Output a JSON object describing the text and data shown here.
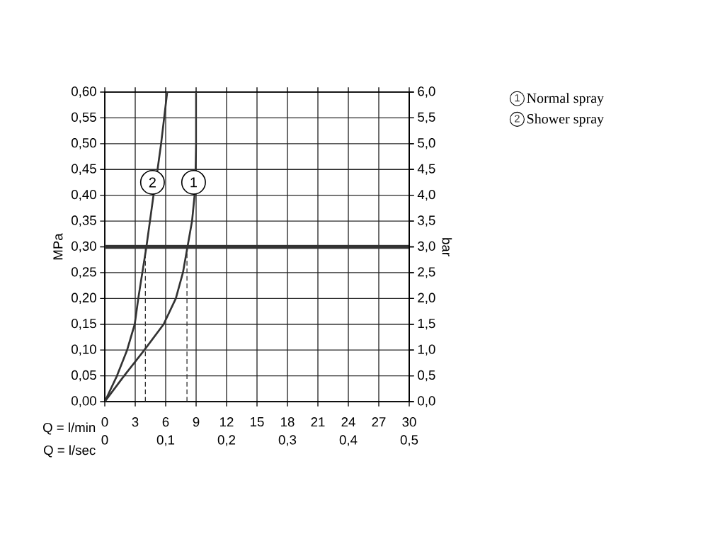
{
  "chart_data": {
    "type": "line",
    "xlabel": "Q = l/min",
    "x2label": "Q = l/sec",
    "ylabel": "MPa",
    "y2label": "bar",
    "xlim": [
      0,
      30
    ],
    "xticks": [
      0,
      3,
      6,
      9,
      12,
      15,
      18,
      21,
      24,
      27,
      30
    ],
    "x2lim": [
      0,
      0.5
    ],
    "x2ticks": [
      0,
      {
        "value": 0.1,
        "label": "0,1"
      },
      {
        "value": 0.2,
        "label": "0,2"
      },
      {
        "value": 0.3,
        "label": "0,3"
      },
      {
        "value": 0.4,
        "label": "0,4"
      },
      {
        "value": 0.5,
        "label": "0,5"
      }
    ],
    "ylim": [
      0,
      0.6
    ],
    "yticks": [
      {
        "value": 0,
        "label": "0,00"
      },
      {
        "value": 0.05,
        "label": "0,05"
      },
      {
        "value": 0.1,
        "label": "0,10"
      },
      {
        "value": 0.15,
        "label": "0,15"
      },
      {
        "value": 0.2,
        "label": "0,20"
      },
      {
        "value": 0.25,
        "label": "0,25"
      },
      {
        "value": 0.3,
        "label": "0,30"
      },
      {
        "value": 0.35,
        "label": "0,35"
      },
      {
        "value": 0.4,
        "label": "0,40"
      },
      {
        "value": 0.45,
        "label": "0,45"
      },
      {
        "value": 0.5,
        "label": "0,50"
      },
      {
        "value": 0.55,
        "label": "0,55"
      },
      {
        "value": 0.6,
        "label": "0,60"
      }
    ],
    "y2lim": [
      0,
      6
    ],
    "y2ticks": [
      {
        "value": 0,
        "label": "0,0"
      },
      {
        "value": 0.5,
        "label": "0,5"
      },
      {
        "value": 1,
        "label": "1,0"
      },
      {
        "value": 1.5,
        "label": "1,5"
      },
      {
        "value": 2,
        "label": "2,0"
      },
      {
        "value": 2.5,
        "label": "2,5"
      },
      {
        "value": 3,
        "label": "3,0"
      },
      {
        "value": 3.5,
        "label": "3,5"
      },
      {
        "value": 4,
        "label": "4,0"
      },
      {
        "value": 4.5,
        "label": "4,5"
      },
      {
        "value": 5,
        "label": "5,0"
      },
      {
        "value": 5.5,
        "label": "5,5"
      },
      {
        "value": 6,
        "label": "6,0"
      }
    ],
    "grid": true,
    "legend": "top right",
    "marker": "none",
    "line_style": "solid",
    "series": [
      {
        "name": "Normal spray",
        "color": "#333333",
        "x": [
          0,
          1.9,
          3.9,
          5.8,
          7.0,
          7.7,
          8.15,
          8.6,
          8.85,
          8.95,
          9.0,
          9.0
        ],
        "values": [
          0,
          0.05,
          0.1,
          0.15,
          0.2,
          0.25,
          0.3,
          0.35,
          0.4,
          0.45,
          0.5,
          0.6
        ]
      },
      {
        "name": "Shower spray",
        "color": "#333333",
        "x": [
          0,
          1.2,
          2.2,
          2.95,
          3.3,
          3.7,
          4.1,
          4.45,
          4.8,
          5.2,
          5.55,
          5.85,
          6.15
        ],
        "values": [
          0,
          0.05,
          0.1,
          0.15,
          0.2,
          0.25,
          0.3,
          0.35,
          0.4,
          0.45,
          0.5,
          0.55,
          0.6
        ]
      }
    ],
    "ref_lines": [
      {
        "axis": "y",
        "value": 0.3,
        "color": "#333333",
        "line_style": "solid"
      },
      {
        "axis": "x",
        "value": 4,
        "color": "#333333",
        "line_style": "dashed"
      },
      {
        "axis": "x",
        "value": 8.1,
        "color": "#333333",
        "line_style": "dashed"
      }
    ],
    "annotations": [
      {
        "text": "1",
        "x": 8.75,
        "y": 0.425
      },
      {
        "text": "2",
        "x": 4.7,
        "y": 0.425
      }
    ]
  }
}
